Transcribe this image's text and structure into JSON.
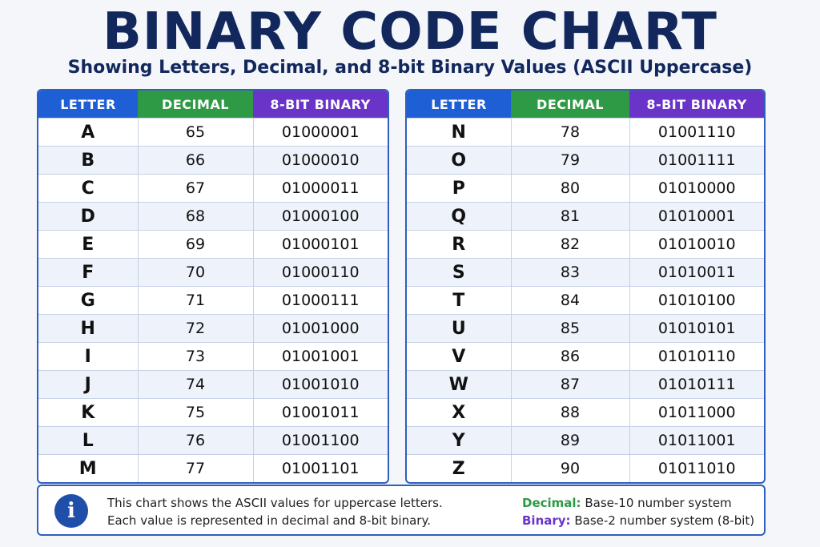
{
  "title": "BINARY CODE CHART",
  "subtitle": "Showing Letters, Decimal, and 8-bit Binary Values (ASCII Uppercase)",
  "headers": {
    "letter": "LETTER",
    "decimal": "DECIMAL",
    "binary": "8-BIT BINARY"
  },
  "left_rows": [
    {
      "letter": "A",
      "decimal": "65",
      "binary": "01000001"
    },
    {
      "letter": "B",
      "decimal": "66",
      "binary": "01000010"
    },
    {
      "letter": "C",
      "decimal": "67",
      "binary": "01000011"
    },
    {
      "letter": "D",
      "decimal": "68",
      "binary": "01000100"
    },
    {
      "letter": "E",
      "decimal": "69",
      "binary": "01000101"
    },
    {
      "letter": "F",
      "decimal": "70",
      "binary": "01000110"
    },
    {
      "letter": "G",
      "decimal": "71",
      "binary": "01000111"
    },
    {
      "letter": "H",
      "decimal": "72",
      "binary": "01001000"
    },
    {
      "letter": "I",
      "decimal": "73",
      "binary": "01001001"
    },
    {
      "letter": "J",
      "decimal": "74",
      "binary": "01001010"
    },
    {
      "letter": "K",
      "decimal": "75",
      "binary": "01001011"
    },
    {
      "letter": "L",
      "decimal": "76",
      "binary": "01001100"
    },
    {
      "letter": "M",
      "decimal": "77",
      "binary": "01001101"
    }
  ],
  "right_rows": [
    {
      "letter": "N",
      "decimal": "78",
      "binary": "01001110"
    },
    {
      "letter": "O",
      "decimal": "79",
      "binary": "01001111"
    },
    {
      "letter": "P",
      "decimal": "80",
      "binary": "01010000"
    },
    {
      "letter": "Q",
      "decimal": "81",
      "binary": "01010001"
    },
    {
      "letter": "R",
      "decimal": "82",
      "binary": "01010010"
    },
    {
      "letter": "S",
      "decimal": "83",
      "binary": "01010011"
    },
    {
      "letter": "T",
      "decimal": "84",
      "binary": "01010100"
    },
    {
      "letter": "U",
      "decimal": "85",
      "binary": "01010101"
    },
    {
      "letter": "V",
      "decimal": "86",
      "binary": "01010110"
    },
    {
      "letter": "W",
      "decimal": "87",
      "binary": "01010111"
    },
    {
      "letter": "X",
      "decimal": "88",
      "binary": "01011000"
    },
    {
      "letter": "Y",
      "decimal": "89",
      "binary": "01011001"
    },
    {
      "letter": "Z",
      "decimal": "90",
      "binary": "01011010"
    }
  ],
  "info": {
    "icon": "info-icon",
    "icon_glyph": "i",
    "line1": "This chart shows the ASCII values for uppercase letters.",
    "line2": "Each value is represented in decimal and 8-bit binary.",
    "decimal_label": "Decimal:",
    "decimal_desc": " Base-10 number system",
    "binary_label": "Binary:",
    "binary_desc": " Base-2 number system (8-bit)"
  },
  "colors": {
    "title": "#12275c",
    "letter_header": "#1f5fd6",
    "decimal_header": "#2f9a45",
    "binary_header": "#6a34c8",
    "border": "#2f5fbf"
  }
}
